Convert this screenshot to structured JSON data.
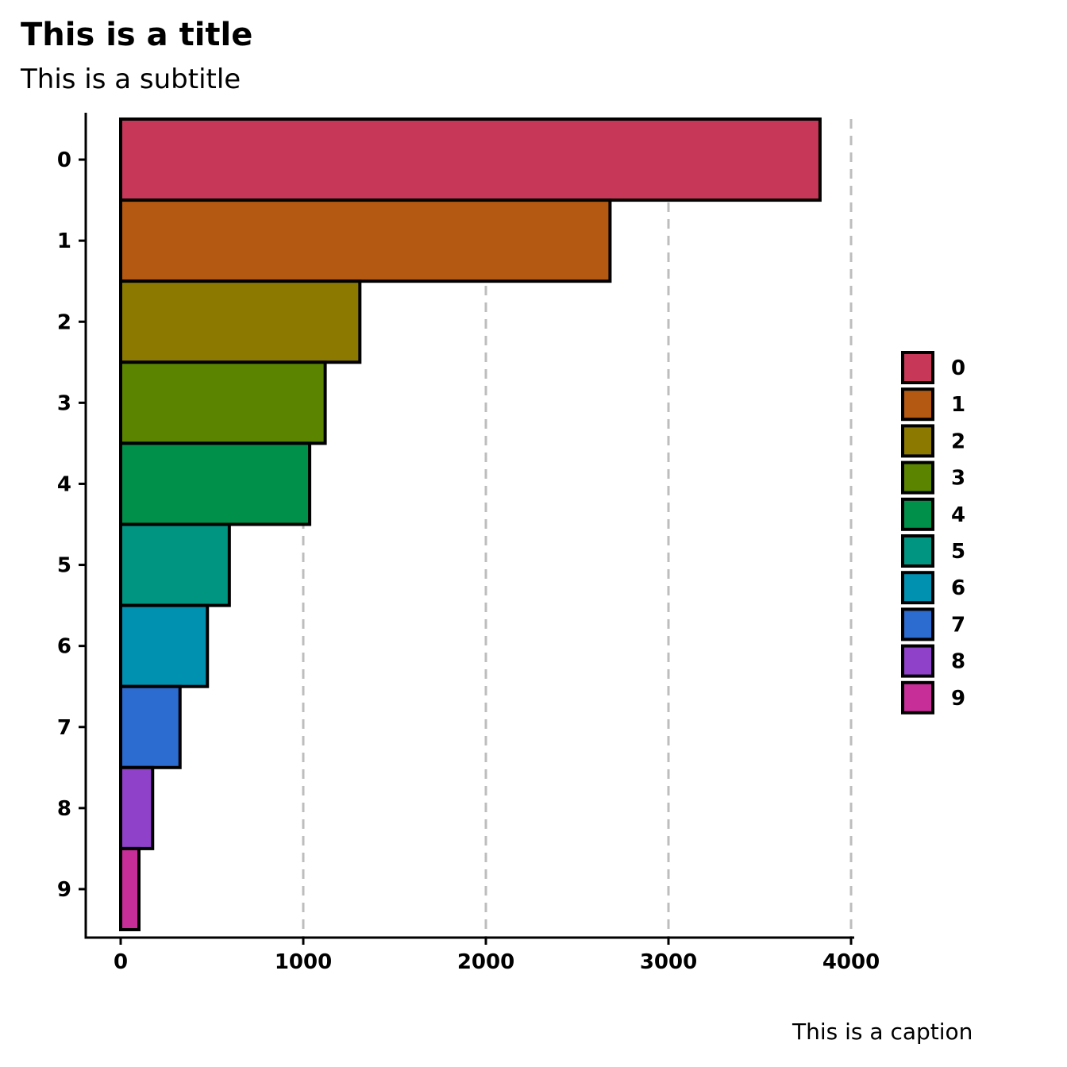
{
  "chart_data": {
    "type": "bar",
    "orientation": "horizontal",
    "title": "This is a title",
    "subtitle": "This is a subtitle",
    "caption": "This is a caption",
    "xlabel": "",
    "ylabel": "",
    "categories": [
      "0",
      "1",
      "2",
      "3",
      "4",
      "5",
      "6",
      "7",
      "8",
      "9"
    ],
    "values": [
      3830,
      2680,
      1310,
      1120,
      1035,
      595,
      475,
      325,
      175,
      100
    ],
    "colors": [
      "#C73858",
      "#B35911",
      "#8C7A00",
      "#5B8500",
      "#00904A",
      "#009580",
      "#0091B1",
      "#2C6BCF",
      "#8F42C9",
      "#C72E98"
    ],
    "xlim": [
      -190,
      4000
    ],
    "xticks": [
      0,
      1000,
      2000,
      3000,
      4000
    ],
    "xtick_labels": [
      "0",
      "1000",
      "2000",
      "3000",
      "4000"
    ],
    "grid": "vertical dashed",
    "legend": {
      "position": "right",
      "entries": [
        "0",
        "1",
        "2",
        "3",
        "4",
        "5",
        "6",
        "7",
        "8",
        "9"
      ]
    }
  }
}
